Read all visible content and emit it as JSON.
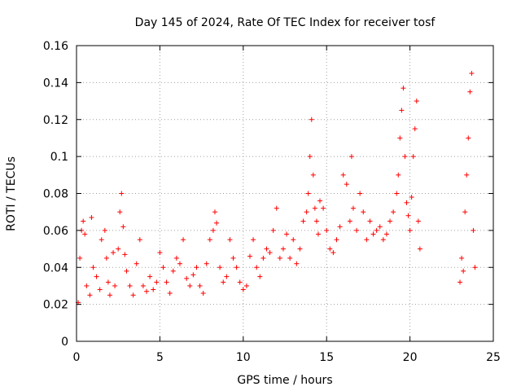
{
  "chart_data": {
    "type": "scatter",
    "title": "Day 145 of 2024, Rate Of TEC Index for receiver tosf",
    "xlabel": "GPS time / hours",
    "ylabel": "ROTI / TECUs",
    "xlim": [
      0,
      25
    ],
    "ylim": [
      0,
      0.16
    ],
    "xticks": [
      "0",
      "5",
      "10",
      "15",
      "20",
      "25"
    ],
    "yticks": [
      "0",
      "0.02",
      "0.04",
      "0.06",
      "0.08",
      "0.1",
      "0.12",
      "0.14",
      "0.16"
    ],
    "grid": true,
    "marker": "plus",
    "marker_color": "#ff0000",
    "series": [
      {
        "points": [
          [
            0.1,
            0.021
          ],
          [
            0.2,
            0.045
          ],
          [
            0.3,
            0.06
          ],
          [
            0.4,
            0.065
          ],
          [
            0.5,
            0.058
          ],
          [
            0.6,
            0.03
          ],
          [
            0.8,
            0.025
          ],
          [
            0.9,
            0.067
          ],
          [
            1.0,
            0.04
          ],
          [
            1.2,
            0.035
          ],
          [
            1.4,
            0.028
          ],
          [
            1.5,
            0.055
          ],
          [
            1.7,
            0.06
          ],
          [
            1.8,
            0.045
          ],
          [
            1.9,
            0.032
          ],
          [
            2.0,
            0.025
          ],
          [
            2.2,
            0.048
          ],
          [
            2.3,
            0.03
          ],
          [
            2.5,
            0.05
          ],
          [
            2.6,
            0.07
          ],
          [
            2.7,
            0.08
          ],
          [
            2.8,
            0.062
          ],
          [
            2.9,
            0.047
          ],
          [
            3.0,
            0.038
          ],
          [
            3.2,
            0.03
          ],
          [
            3.4,
            0.025
          ],
          [
            3.6,
            0.042
          ],
          [
            3.8,
            0.055
          ],
          [
            4.0,
            0.03
          ],
          [
            4.2,
            0.027
          ],
          [
            4.4,
            0.035
          ],
          [
            4.6,
            0.028
          ],
          [
            4.8,
            0.032
          ],
          [
            5.0,
            0.048
          ],
          [
            5.2,
            0.04
          ],
          [
            5.4,
            0.032
          ],
          [
            5.6,
            0.026
          ],
          [
            5.8,
            0.038
          ],
          [
            6.0,
            0.045
          ],
          [
            6.2,
            0.042
          ],
          [
            6.4,
            0.055
          ],
          [
            6.6,
            0.034
          ],
          [
            6.8,
            0.03
          ],
          [
            7.0,
            0.036
          ],
          [
            7.2,
            0.04
          ],
          [
            7.4,
            0.03
          ],
          [
            7.6,
            0.026
          ],
          [
            7.8,
            0.042
          ],
          [
            8.0,
            0.055
          ],
          [
            8.2,
            0.06
          ],
          [
            8.3,
            0.07
          ],
          [
            8.4,
            0.064
          ],
          [
            8.6,
            0.04
          ],
          [
            8.8,
            0.032
          ],
          [
            9.0,
            0.035
          ],
          [
            9.2,
            0.055
          ],
          [
            9.4,
            0.045
          ],
          [
            9.6,
            0.04
          ],
          [
            9.8,
            0.032
          ],
          [
            10.0,
            0.028
          ],
          [
            10.2,
            0.03
          ],
          [
            10.4,
            0.046
          ],
          [
            10.6,
            0.055
          ],
          [
            10.8,
            0.04
          ],
          [
            11.0,
            0.035
          ],
          [
            11.2,
            0.045
          ],
          [
            11.4,
            0.05
          ],
          [
            11.6,
            0.048
          ],
          [
            11.8,
            0.06
          ],
          [
            12.0,
            0.072
          ],
          [
            12.2,
            0.045
          ],
          [
            12.4,
            0.05
          ],
          [
            12.6,
            0.058
          ],
          [
            12.8,
            0.045
          ],
          [
            13.0,
            0.055
          ],
          [
            13.2,
            0.042
          ],
          [
            13.4,
            0.05
          ],
          [
            13.6,
            0.065
          ],
          [
            13.8,
            0.07
          ],
          [
            13.9,
            0.08
          ],
          [
            14.0,
            0.1
          ],
          [
            14.1,
            0.12
          ],
          [
            14.2,
            0.09
          ],
          [
            14.3,
            0.072
          ],
          [
            14.4,
            0.065
          ],
          [
            14.5,
            0.058
          ],
          [
            14.6,
            0.076
          ],
          [
            14.8,
            0.072
          ],
          [
            15.0,
            0.06
          ],
          [
            15.2,
            0.05
          ],
          [
            15.4,
            0.048
          ],
          [
            15.6,
            0.055
          ],
          [
            15.8,
            0.062
          ],
          [
            16.0,
            0.09
          ],
          [
            16.2,
            0.085
          ],
          [
            16.4,
            0.065
          ],
          [
            16.5,
            0.1
          ],
          [
            16.6,
            0.072
          ],
          [
            16.8,
            0.06
          ],
          [
            17.0,
            0.08
          ],
          [
            17.2,
            0.07
          ],
          [
            17.4,
            0.055
          ],
          [
            17.6,
            0.065
          ],
          [
            17.8,
            0.058
          ],
          [
            18.0,
            0.06
          ],
          [
            18.2,
            0.062
          ],
          [
            18.4,
            0.055
          ],
          [
            18.6,
            0.058
          ],
          [
            18.8,
            0.065
          ],
          [
            19.0,
            0.07
          ],
          [
            19.2,
            0.08
          ],
          [
            19.3,
            0.09
          ],
          [
            19.4,
            0.11
          ],
          [
            19.5,
            0.125
          ],
          [
            19.6,
            0.137
          ],
          [
            19.7,
            0.1
          ],
          [
            19.8,
            0.075
          ],
          [
            19.9,
            0.068
          ],
          [
            20.0,
            0.06
          ],
          [
            20.1,
            0.078
          ],
          [
            20.2,
            0.1
          ],
          [
            20.3,
            0.115
          ],
          [
            20.4,
            0.13
          ],
          [
            20.5,
            0.065
          ],
          [
            20.6,
            0.05
          ],
          [
            23.0,
            0.032
          ],
          [
            23.1,
            0.045
          ],
          [
            23.2,
            0.038
          ],
          [
            23.3,
            0.07
          ],
          [
            23.4,
            0.09
          ],
          [
            23.5,
            0.11
          ],
          [
            23.6,
            0.135
          ],
          [
            23.7,
            0.145
          ],
          [
            23.8,
            0.06
          ],
          [
            23.9,
            0.04
          ]
        ]
      }
    ]
  }
}
